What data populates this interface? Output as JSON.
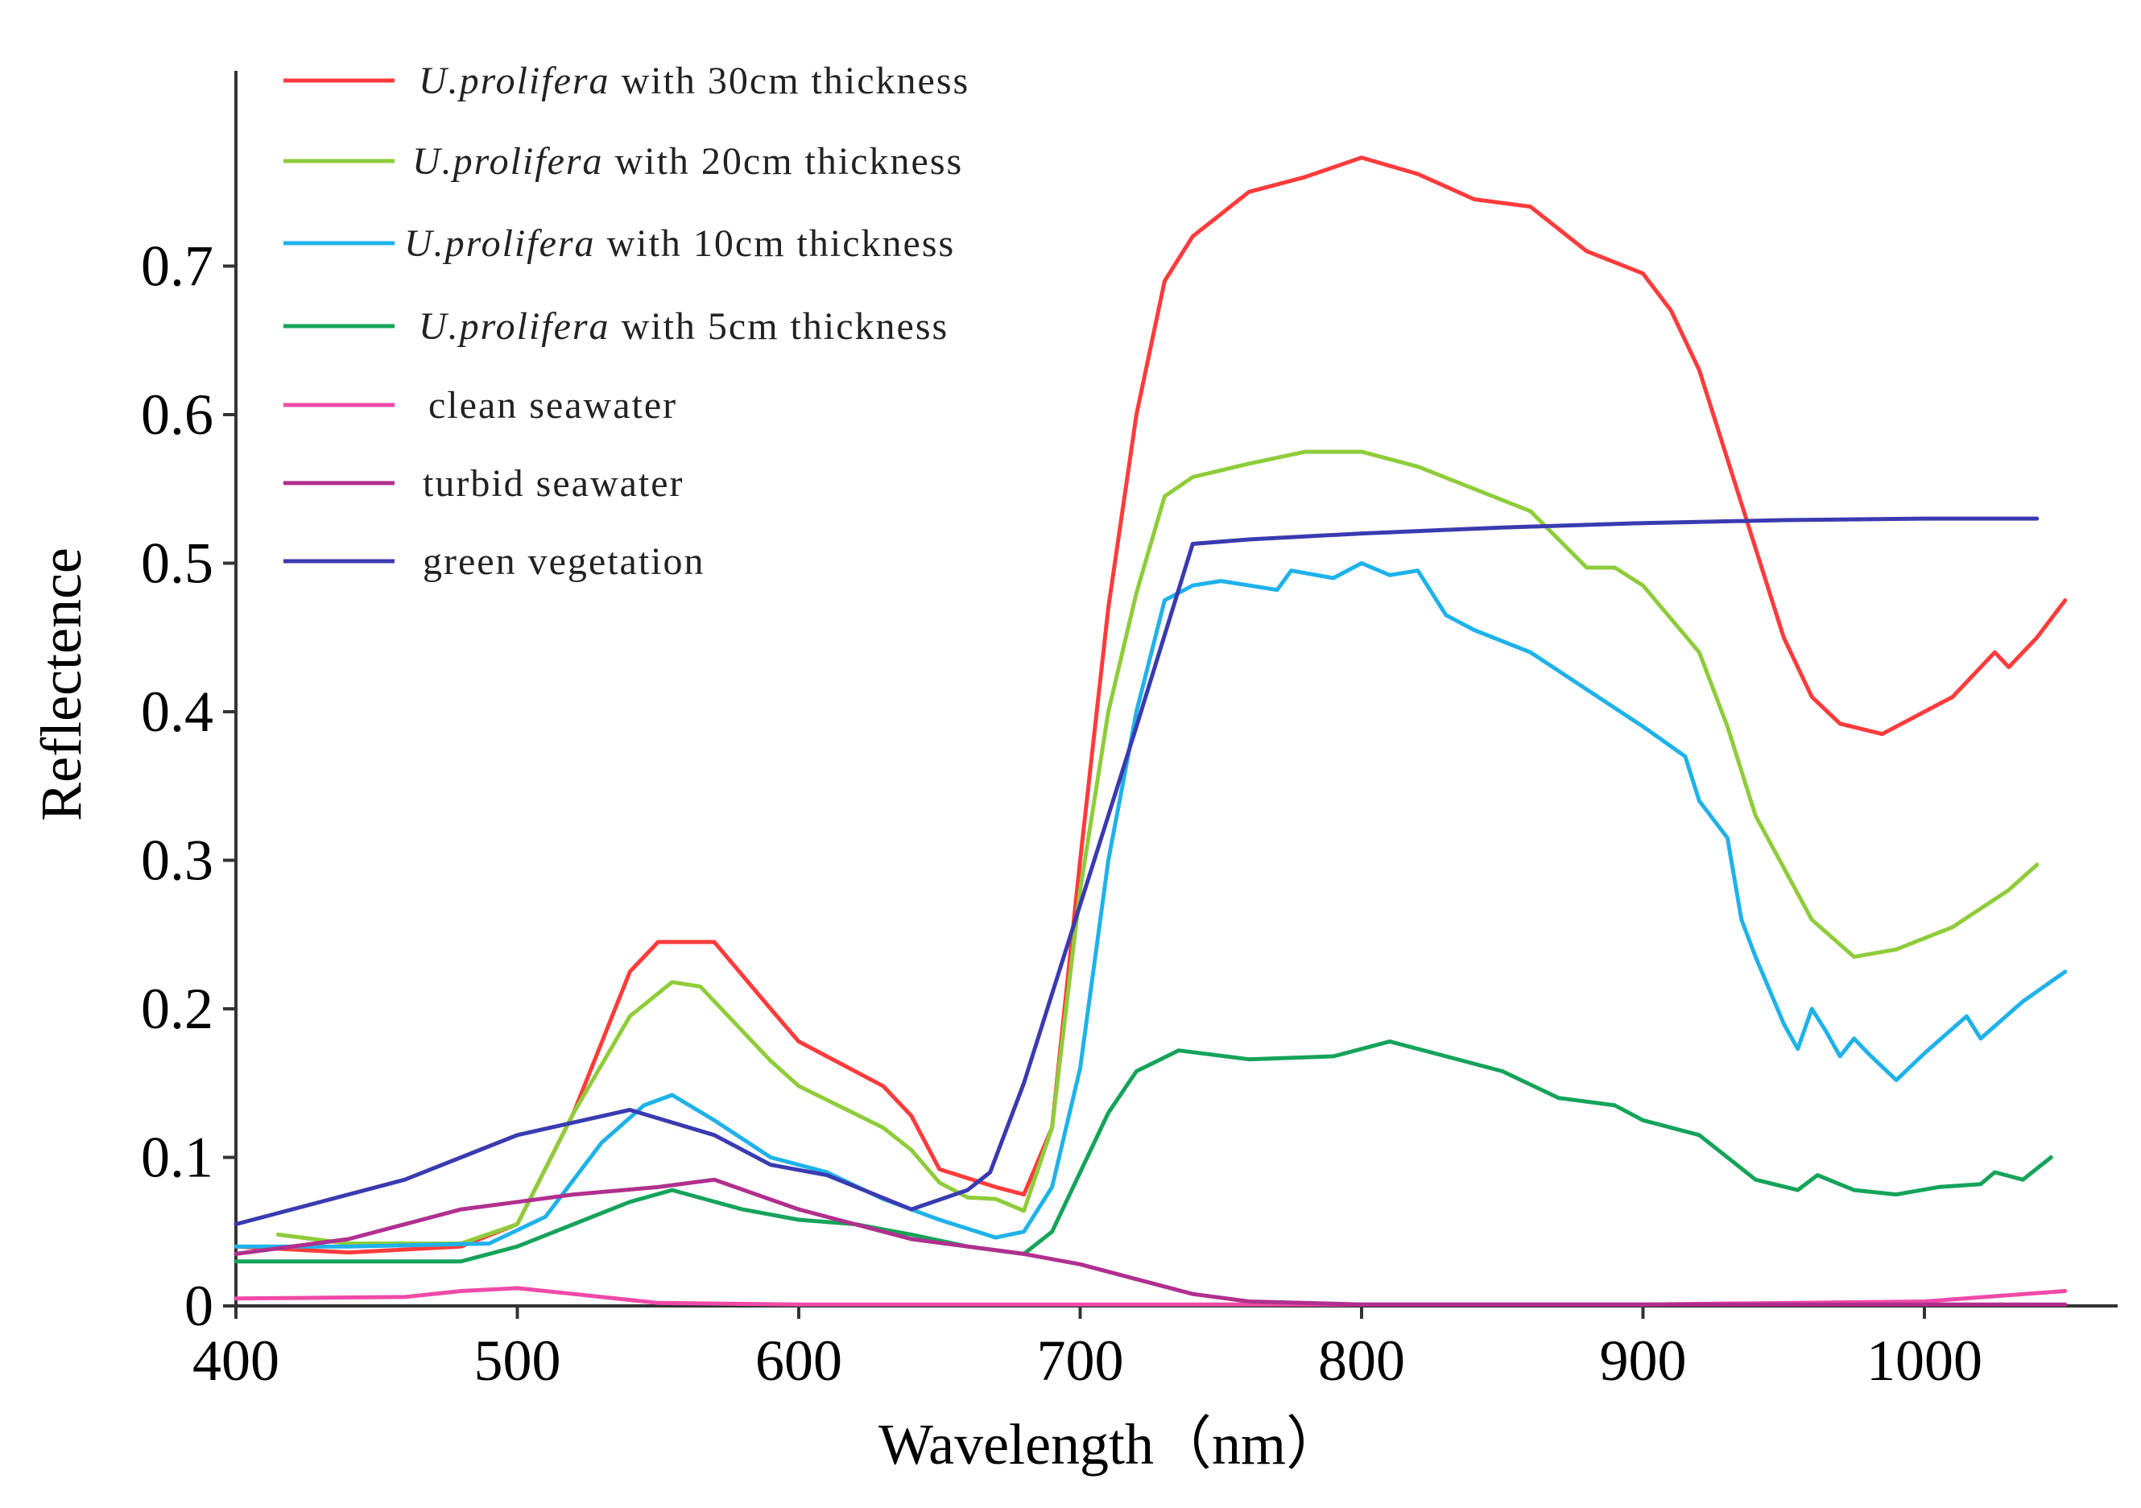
{
  "chart_data": {
    "type": "line",
    "title": "",
    "xlabel": "Wavelength（nm）",
    "ylabel": "Reflectence",
    "xlim": [
      400,
      1070
    ],
    "ylim": [
      0,
      0.8
    ],
    "x_ticks": [
      "400",
      "500",
      "600",
      "700",
      "800",
      "900",
      "1000"
    ],
    "y_ticks": [
      "0",
      "0.1",
      "0.2",
      "0.3",
      "0.4",
      "0.5",
      "0.6",
      "0.7"
    ],
    "legend_position": "top-left",
    "series": [
      {
        "name": "U.prolifera with 30cm thickness",
        "name_italic": "U.prolifera",
        "name_rest": "with 30cm thickness",
        "color": "#ff3b3b",
        "points": [
          [
            400,
            0.04
          ],
          [
            440,
            0.036
          ],
          [
            480,
            0.04
          ],
          [
            500,
            0.055
          ],
          [
            520,
            0.13
          ],
          [
            540,
            0.225
          ],
          [
            550,
            0.245
          ],
          [
            570,
            0.245
          ],
          [
            590,
            0.2
          ],
          [
            600,
            0.178
          ],
          [
            630,
            0.148
          ],
          [
            640,
            0.128
          ],
          [
            650,
            0.092
          ],
          [
            670,
            0.08
          ],
          [
            680,
            0.075
          ],
          [
            690,
            0.12
          ],
          [
            700,
            0.3
          ],
          [
            710,
            0.47
          ],
          [
            720,
            0.6
          ],
          [
            730,
            0.69
          ],
          [
            740,
            0.72
          ],
          [
            760,
            0.75
          ],
          [
            780,
            0.76
          ],
          [
            800,
            0.773
          ],
          [
            820,
            0.762
          ],
          [
            840,
            0.745
          ],
          [
            860,
            0.74
          ],
          [
            880,
            0.71
          ],
          [
            900,
            0.695
          ],
          [
            910,
            0.67
          ],
          [
            920,
            0.63
          ],
          [
            930,
            0.57
          ],
          [
            940,
            0.51
          ],
          [
            950,
            0.45
          ],
          [
            960,
            0.41
          ],
          [
            970,
            0.392
          ],
          [
            985,
            0.385
          ],
          [
            1000,
            0.4
          ],
          [
            1010,
            0.41
          ],
          [
            1025,
            0.44
          ],
          [
            1030,
            0.43
          ],
          [
            1040,
            0.45
          ],
          [
            1050,
            0.475
          ]
        ]
      },
      {
        "name": "U.prolifera with 20cm thickness",
        "name_italic": "U.prolifera",
        "name_rest": "with 20cm thickness",
        "color": "#8fcc3a",
        "points": [
          [
            415,
            0.048
          ],
          [
            440,
            0.042
          ],
          [
            480,
            0.042
          ],
          [
            500,
            0.055
          ],
          [
            520,
            0.13
          ],
          [
            540,
            0.195
          ],
          [
            555,
            0.218
          ],
          [
            565,
            0.215
          ],
          [
            590,
            0.165
          ],
          [
            600,
            0.148
          ],
          [
            630,
            0.12
          ],
          [
            640,
            0.105
          ],
          [
            650,
            0.083
          ],
          [
            660,
            0.073
          ],
          [
            670,
            0.072
          ],
          [
            680,
            0.064
          ],
          [
            690,
            0.12
          ],
          [
            700,
            0.28
          ],
          [
            710,
            0.4
          ],
          [
            720,
            0.48
          ],
          [
            730,
            0.545
          ],
          [
            740,
            0.558
          ],
          [
            760,
            0.567
          ],
          [
            780,
            0.575
          ],
          [
            800,
            0.575
          ],
          [
            820,
            0.565
          ],
          [
            840,
            0.55
          ],
          [
            860,
            0.535
          ],
          [
            880,
            0.497
          ],
          [
            890,
            0.497
          ],
          [
            900,
            0.485
          ],
          [
            920,
            0.44
          ],
          [
            930,
            0.39
          ],
          [
            940,
            0.33
          ],
          [
            960,
            0.26
          ],
          [
            975,
            0.235
          ],
          [
            990,
            0.24
          ],
          [
            1010,
            0.255
          ],
          [
            1030,
            0.28
          ],
          [
            1040,
            0.297
          ]
        ]
      },
      {
        "name": "U.prolifera with 10cm thickness",
        "name_italic": "U.prolifera",
        "name_rest": "with 10cm thickness",
        "color": "#1fb2ea",
        "points": [
          [
            400,
            0.04
          ],
          [
            440,
            0.04
          ],
          [
            490,
            0.042
          ],
          [
            510,
            0.06
          ],
          [
            530,
            0.11
          ],
          [
            545,
            0.135
          ],
          [
            555,
            0.142
          ],
          [
            570,
            0.125
          ],
          [
            590,
            0.1
          ],
          [
            610,
            0.09
          ],
          [
            630,
            0.072
          ],
          [
            650,
            0.058
          ],
          [
            670,
            0.046
          ],
          [
            680,
            0.05
          ],
          [
            690,
            0.08
          ],
          [
            700,
            0.16
          ],
          [
            710,
            0.3
          ],
          [
            720,
            0.4
          ],
          [
            730,
            0.475
          ],
          [
            740,
            0.485
          ],
          [
            750,
            0.488
          ],
          [
            770,
            0.482
          ],
          [
            775,
            0.495
          ],
          [
            790,
            0.49
          ],
          [
            800,
            0.5
          ],
          [
            810,
            0.492
          ],
          [
            820,
            0.495
          ],
          [
            830,
            0.465
          ],
          [
            840,
            0.455
          ],
          [
            860,
            0.44
          ],
          [
            880,
            0.415
          ],
          [
            900,
            0.39
          ],
          [
            915,
            0.37
          ],
          [
            920,
            0.34
          ],
          [
            930,
            0.315
          ],
          [
            935,
            0.26
          ],
          [
            940,
            0.235
          ],
          [
            950,
            0.19
          ],
          [
            955,
            0.173
          ],
          [
            960,
            0.2
          ],
          [
            965,
            0.185
          ],
          [
            970,
            0.168
          ],
          [
            975,
            0.18
          ],
          [
            980,
            0.17
          ],
          [
            990,
            0.152
          ],
          [
            1000,
            0.17
          ],
          [
            1015,
            0.195
          ],
          [
            1020,
            0.18
          ],
          [
            1035,
            0.205
          ],
          [
            1050,
            0.225
          ]
        ]
      },
      {
        "name": "U.prolifera with 5cm thickness",
        "name_italic": "U.prolifera",
        "name_rest": "with 5cm thickness",
        "color": "#15a35a",
        "points": [
          [
            400,
            0.03
          ],
          [
            440,
            0.03
          ],
          [
            480,
            0.03
          ],
          [
            500,
            0.04
          ],
          [
            520,
            0.055
          ],
          [
            540,
            0.07
          ],
          [
            555,
            0.078
          ],
          [
            580,
            0.065
          ],
          [
            600,
            0.058
          ],
          [
            620,
            0.055
          ],
          [
            640,
            0.048
          ],
          [
            660,
            0.04
          ],
          [
            680,
            0.035
          ],
          [
            690,
            0.05
          ],
          [
            700,
            0.09
          ],
          [
            710,
            0.13
          ],
          [
            720,
            0.158
          ],
          [
            735,
            0.172
          ],
          [
            760,
            0.166
          ],
          [
            790,
            0.168
          ],
          [
            810,
            0.178
          ],
          [
            830,
            0.168
          ],
          [
            850,
            0.158
          ],
          [
            870,
            0.14
          ],
          [
            890,
            0.135
          ],
          [
            900,
            0.125
          ],
          [
            920,
            0.115
          ],
          [
            940,
            0.085
          ],
          [
            955,
            0.078
          ],
          [
            962,
            0.088
          ],
          [
            975,
            0.078
          ],
          [
            990,
            0.075
          ],
          [
            1005,
            0.08
          ],
          [
            1020,
            0.082
          ],
          [
            1025,
            0.09
          ],
          [
            1035,
            0.085
          ],
          [
            1045,
            0.1
          ]
        ]
      },
      {
        "name": "clean seawater",
        "color": "#f04aa8",
        "points": [
          [
            400,
            0.005
          ],
          [
            460,
            0.006
          ],
          [
            480,
            0.01
          ],
          [
            500,
            0.012
          ],
          [
            520,
            0.008
          ],
          [
            550,
            0.002
          ],
          [
            600,
            0.001
          ],
          [
            700,
            0.001
          ],
          [
            800,
            0.001
          ],
          [
            900,
            0.001
          ],
          [
            1000,
            0.003
          ],
          [
            1050,
            0.01
          ]
        ]
      },
      {
        "name": "turbid seawater",
        "color": "#b12f8e",
        "points": [
          [
            400,
            0.035
          ],
          [
            440,
            0.045
          ],
          [
            480,
            0.065
          ],
          [
            520,
            0.075
          ],
          [
            550,
            0.08
          ],
          [
            570,
            0.085
          ],
          [
            600,
            0.065
          ],
          [
            640,
            0.045
          ],
          [
            680,
            0.035
          ],
          [
            700,
            0.028
          ],
          [
            720,
            0.018
          ],
          [
            740,
            0.008
          ],
          [
            760,
            0.003
          ],
          [
            800,
            0.001
          ],
          [
            900,
            0.001
          ],
          [
            1050,
            0.001
          ]
        ]
      },
      {
        "name": "green vegetation",
        "color": "#3a3ab0",
        "points": [
          [
            400,
            0.055
          ],
          [
            460,
            0.085
          ],
          [
            500,
            0.115
          ],
          [
            540,
            0.132
          ],
          [
            570,
            0.115
          ],
          [
            590,
            0.095
          ],
          [
            610,
            0.088
          ],
          [
            640,
            0.065
          ],
          [
            660,
            0.078
          ],
          [
            668,
            0.09
          ],
          [
            680,
            0.15
          ],
          [
            700,
            0.27
          ],
          [
            720,
            0.39
          ],
          [
            740,
            0.513
          ],
          [
            760,
            0.516
          ],
          [
            800,
            0.52
          ],
          [
            850,
            0.524
          ],
          [
            900,
            0.527
          ],
          [
            950,
            0.529
          ],
          [
            1000,
            0.53
          ],
          [
            1040,
            0.53
          ]
        ]
      }
    ]
  }
}
